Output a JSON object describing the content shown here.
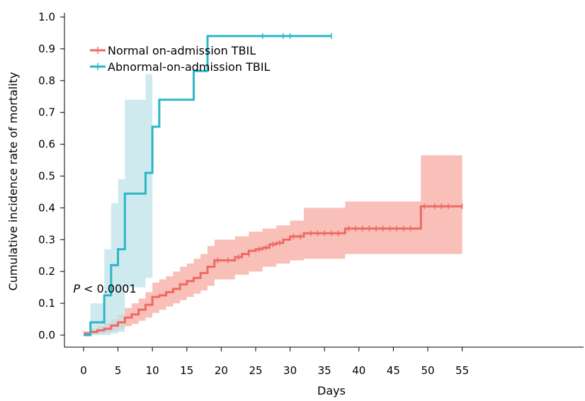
{
  "chart_data": {
    "type": "line",
    "subtype": "kaplan-meier cumulative incidence step curves with confidence bands",
    "xlabel": "Days",
    "ylabel": "Cumulative incidence rate of mortality",
    "xlim": [
      -2,
      57
    ],
    "ylim": [
      -0.04,
      1.04
    ],
    "x_ticks": [
      0,
      5,
      10,
      15,
      20,
      25,
      30,
      35,
      40,
      45,
      50,
      55
    ],
    "y_ticks": [
      0.0,
      0.1,
      0.2,
      0.3,
      0.4,
      0.5,
      0.6,
      0.7,
      0.8,
      0.9,
      1.0
    ],
    "y_tick_labels": [
      "0.0",
      "0.1",
      "0.2",
      "0.3",
      "0.4",
      "0.5",
      "0.6",
      "0.7",
      "0.8",
      "0.9",
      "1.0"
    ],
    "grid": false,
    "legend_position": "top-left",
    "annotation": {
      "italic": "P",
      "text": " < 0.0001",
      "x": -1.5,
      "y": 0.145
    },
    "series": [
      {
        "name": "Normal on-admission TBIL",
        "color": "#ee6a63",
        "band_color": "#f7aaa2",
        "steps": [
          [
            0,
            0.005
          ],
          [
            1,
            0.01
          ],
          [
            2,
            0.015
          ],
          [
            3,
            0.02
          ],
          [
            4,
            0.03
          ],
          [
            5,
            0.04
          ],
          [
            6,
            0.055
          ],
          [
            7,
            0.065
          ],
          [
            8,
            0.08
          ],
          [
            9,
            0.095
          ],
          [
            10,
            0.12
          ],
          [
            11,
            0.125
          ],
          [
            12,
            0.135
          ],
          [
            13,
            0.145
          ],
          [
            14,
            0.16
          ],
          [
            15,
            0.17
          ],
          [
            16,
            0.18
          ],
          [
            17,
            0.195
          ],
          [
            18,
            0.215
          ],
          [
            19,
            0.235
          ],
          [
            22,
            0.245
          ],
          [
            23,
            0.255
          ],
          [
            24,
            0.265
          ],
          [
            25,
            0.27
          ],
          [
            26,
            0.275
          ],
          [
            27,
            0.285
          ],
          [
            28,
            0.29
          ],
          [
            29,
            0.3
          ],
          [
            30,
            0.31
          ],
          [
            32,
            0.32
          ],
          [
            38,
            0.335
          ],
          [
            49,
            0.405
          ],
          [
            55,
            0.405
          ]
        ],
        "ci_lower": [
          [
            0,
            0.0
          ],
          [
            1,
            0.002
          ],
          [
            2,
            0.005
          ],
          [
            3,
            0.008
          ],
          [
            4,
            0.012
          ],
          [
            5,
            0.018
          ],
          [
            6,
            0.028
          ],
          [
            7,
            0.035
          ],
          [
            8,
            0.045
          ],
          [
            9,
            0.055
          ],
          [
            10,
            0.07
          ],
          [
            11,
            0.08
          ],
          [
            12,
            0.09
          ],
          [
            13,
            0.1
          ],
          [
            14,
            0.11
          ],
          [
            15,
            0.12
          ],
          [
            16,
            0.13
          ],
          [
            17,
            0.14
          ],
          [
            18,
            0.155
          ],
          [
            19,
            0.175
          ],
          [
            22,
            0.19
          ],
          [
            24,
            0.2
          ],
          [
            26,
            0.215
          ],
          [
            28,
            0.225
          ],
          [
            30,
            0.235
          ],
          [
            32,
            0.24
          ],
          [
            38,
            0.255
          ],
          [
            49,
            0.255
          ],
          [
            55,
            0.25
          ]
        ],
        "ci_upper": [
          [
            0,
            0.012
          ],
          [
            1,
            0.02
          ],
          [
            2,
            0.028
          ],
          [
            3,
            0.038
          ],
          [
            4,
            0.05
          ],
          [
            5,
            0.065
          ],
          [
            6,
            0.085
          ],
          [
            7,
            0.1
          ],
          [
            8,
            0.115
          ],
          [
            9,
            0.135
          ],
          [
            10,
            0.165
          ],
          [
            11,
            0.175
          ],
          [
            12,
            0.185
          ],
          [
            13,
            0.2
          ],
          [
            14,
            0.215
          ],
          [
            15,
            0.225
          ],
          [
            16,
            0.24
          ],
          [
            17,
            0.255
          ],
          [
            18,
            0.28
          ],
          [
            19,
            0.3
          ],
          [
            22,
            0.31
          ],
          [
            24,
            0.325
          ],
          [
            26,
            0.335
          ],
          [
            28,
            0.345
          ],
          [
            30,
            0.36
          ],
          [
            32,
            0.4
          ],
          [
            38,
            0.42
          ],
          [
            49,
            0.565
          ],
          [
            55,
            0.565
          ]
        ],
        "censor_marks": [
          [
            19.5,
            0.235
          ],
          [
            21,
            0.235
          ],
          [
            22.5,
            0.245
          ],
          [
            24,
            0.255
          ],
          [
            25.5,
            0.27
          ],
          [
            26.5,
            0.275
          ],
          [
            27.5,
            0.285
          ],
          [
            28.5,
            0.29
          ],
          [
            30.5,
            0.31
          ],
          [
            31.5,
            0.31
          ],
          [
            33,
            0.32
          ],
          [
            34,
            0.32
          ],
          [
            35,
            0.32
          ],
          [
            36,
            0.32
          ],
          [
            37,
            0.32
          ],
          [
            38.5,
            0.335
          ],
          [
            39.5,
            0.335
          ],
          [
            40.5,
            0.335
          ],
          [
            41.5,
            0.335
          ],
          [
            42.5,
            0.335
          ],
          [
            43.5,
            0.335
          ],
          [
            44.5,
            0.335
          ],
          [
            45.5,
            0.335
          ],
          [
            46.5,
            0.335
          ],
          [
            47.5,
            0.335
          ],
          [
            49.5,
            0.405
          ],
          [
            51,
            0.405
          ],
          [
            52,
            0.405
          ],
          [
            53,
            0.405
          ],
          [
            55,
            0.405
          ]
        ]
      },
      {
        "name": "Abnormal-on-admission TBIL",
        "color": "#2ab7c6",
        "band_color": "#bfe3e8",
        "steps": [
          [
            0,
            0.0
          ],
          [
            1,
            0.04
          ],
          [
            3,
            0.125
          ],
          [
            4,
            0.22
          ],
          [
            5,
            0.27
          ],
          [
            6,
            0.445
          ],
          [
            9,
            0.51
          ],
          [
            10,
            0.655
          ],
          [
            11,
            0.74
          ],
          [
            16,
            0.83
          ],
          [
            18,
            0.94
          ],
          [
            36,
            0.94
          ]
        ],
        "ci_lower": [
          [
            0,
            0.0
          ],
          [
            1,
            0.0
          ],
          [
            3,
            0.0
          ],
          [
            4,
            0.005
          ],
          [
            5,
            0.01
          ],
          [
            6,
            0.15
          ],
          [
            9,
            0.18
          ],
          [
            10,
            0.195
          ]
        ],
        "ci_upper": [
          [
            0,
            0.0
          ],
          [
            1,
            0.1
          ],
          [
            3,
            0.27
          ],
          [
            4,
            0.415
          ],
          [
            5,
            0.49
          ],
          [
            6,
            0.74
          ],
          [
            9,
            0.82
          ],
          [
            10,
            0.82
          ]
        ],
        "ci_end_x": 10,
        "censor_marks": [
          [
            26,
            0.94
          ],
          [
            29,
            0.94
          ],
          [
            30,
            0.94
          ],
          [
            36,
            0.94
          ]
        ]
      }
    ]
  }
}
